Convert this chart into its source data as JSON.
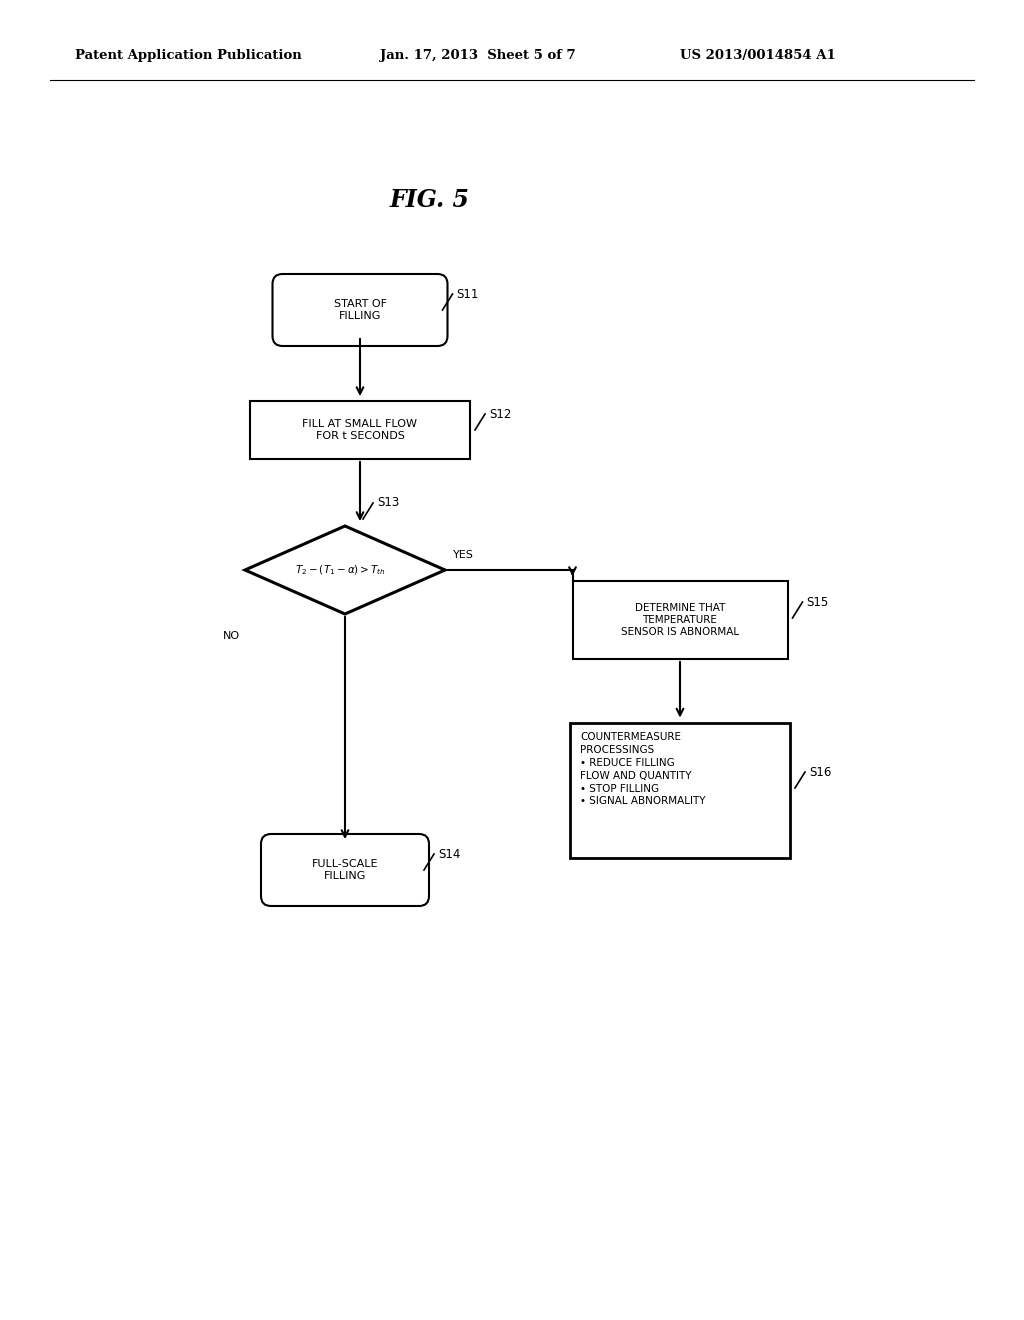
{
  "bg_color": "#ffffff",
  "header_left": "Patent Application Publication",
  "header_mid": "Jan. 17, 2013  Sheet 5 of 7",
  "header_right": "US 2013/0014854 A1",
  "fig_title": "FIG. 5",
  "font_size_node": 8.0,
  "font_size_header": 9.5,
  "font_size_title": 17
}
